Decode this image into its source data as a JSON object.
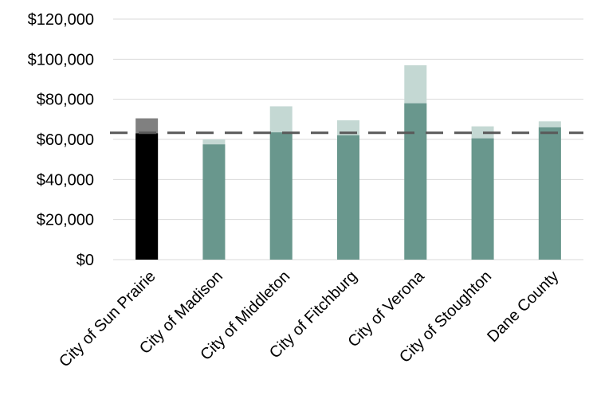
{
  "chart_data": {
    "type": "bar",
    "categories": [
      "City of Sun Prairie",
      "City of Madison",
      "City of Middleton",
      "City of Fitchburg",
      "City of Verona",
      "City of Stoughton",
      "Dane County"
    ],
    "series": [
      {
        "values": [
          63000,
          57500,
          63500,
          62000,
          78000,
          60500,
          66000
        ]
      },
      {
        "values": [
          70500,
          60000,
          76500,
          69500,
          97000,
          66500,
          69000
        ]
      }
    ],
    "reference_line": {
      "value": 63300,
      "style": "dashed",
      "color": "#595959"
    },
    "yticks": [
      "$0",
      "$20,000",
      "$40,000",
      "$60,000",
      "$80,000",
      "$100,000",
      "$120,000"
    ],
    "ylim": [
      0,
      120000
    ],
    "grid": true,
    "legend": "none",
    "colors": {
      "highlight_primary": "#000000",
      "highlight_secondary": "#808080",
      "primary": "#69978d",
      "secondary": "#c4d8d3",
      "grid": "#d9d9d9"
    }
  }
}
